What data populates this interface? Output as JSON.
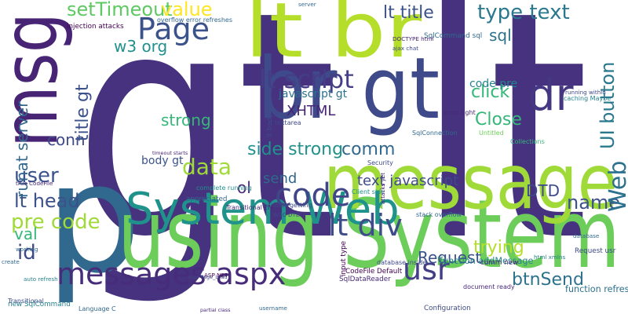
{
  "chart_data": {
    "type": "wordcloud",
    "words": [
      {
        "text": "gt lt",
        "value": 100,
        "color": "#46327e"
      },
      {
        "text": "p",
        "value": 48,
        "color": "#31688e"
      },
      {
        "text": "using System",
        "value": 30,
        "color": "#6ccd5a"
      },
      {
        "text": "message",
        "value": 24,
        "color": "#a0da39"
      },
      {
        "text": "msg",
        "value": 24,
        "color": "#482475"
      },
      {
        "text": "lt br",
        "value": 24,
        "color": "#b5de2b"
      },
      {
        "text": "br gt",
        "value": 27,
        "color": "#3e4a89"
      },
      {
        "text": "dr",
        "value": 14,
        "color": "#453781"
      },
      {
        "text": "System Web",
        "value": 14,
        "color": "#20928c"
      },
      {
        "text": "messages aspx",
        "value": 9.5,
        "color": "#472c7a"
      },
      {
        "text": "code",
        "value": 10,
        "color": "#404688"
      },
      {
        "text": "lt div",
        "value": 9.5,
        "color": "#3e4c8a"
      },
      {
        "text": "usr",
        "value": 9.5,
        "color": "#433e85"
      },
      {
        "text": "Page",
        "value": 9.5,
        "color": "#3b528b"
      },
      {
        "text": "lt script",
        "value": 8,
        "color": "#433e85"
      },
      {
        "text": "setTimeout",
        "value": 6,
        "color": "#5ec962"
      },
      {
        "text": "value",
        "value": 6,
        "color": "#fde725"
      },
      {
        "text": "type text",
        "value": 6.5,
        "color": "#2a788e"
      },
      {
        "text": "lt title",
        "value": 5.5,
        "color": "#3b528b"
      },
      {
        "text": "sql",
        "value": 5,
        "color": "#2c728e"
      },
      {
        "text": "w3 org",
        "value": 5,
        "color": "#21918c"
      },
      {
        "text": "XHTML",
        "value": 4.5,
        "color": "#482677"
      },
      {
        "text": "javascript gt",
        "value": 3.5,
        "color": "#2c728e"
      },
      {
        "text": "click",
        "value": 5.5,
        "color": "#35b779"
      },
      {
        "text": "code pre",
        "value": 3.5,
        "color": "#26828e"
      },
      {
        "text": "strong",
        "value": 5,
        "color": "#35b779"
      },
      {
        "text": "side strong",
        "value": 5.5,
        "color": "#21918c"
      },
      {
        "text": "Close",
        "value": 5.5,
        "color": "#35b779"
      },
      {
        "text": "conn",
        "value": 5,
        "color": "#3e4989"
      },
      {
        "text": "data",
        "value": 7,
        "color": "#a0da39"
      },
      {
        "text": "comm",
        "value": 5.5,
        "color": "#31688e"
      },
      {
        "text": "DTD",
        "value": 5,
        "color": "#3e4a89"
      },
      {
        "text": "user",
        "value": 6.5,
        "color": "#3b528b"
      },
      {
        "text": "lt head",
        "value": 6,
        "color": "#3b528b"
      },
      {
        "text": "pre code",
        "value": 6.5,
        "color": "#a0da39"
      },
      {
        "text": "val",
        "value": 5,
        "color": "#35b779"
      },
      {
        "text": "id",
        "value": 6.5,
        "color": "#3e4a89"
      },
      {
        "text": "name",
        "value": 6,
        "color": "#3b528b"
      },
      {
        "text": "btnSend",
        "value": 5.5,
        "color": "#2c728e"
      },
      {
        "text": "Request",
        "value": 5,
        "color": "#3b528b"
      },
      {
        "text": "trying",
        "value": 5.5,
        "color": "#b5de2b"
      },
      {
        "text": "text javascript",
        "value": 4.5,
        "color": "#3e4a89"
      },
      {
        "text": "send",
        "value": 4.5,
        "color": "#31688e"
      },
      {
        "text": "ol",
        "value": 5,
        "color": "#482677"
      },
      {
        "text": "body gt",
        "value": 3.5,
        "color": "#3b528b"
      },
      {
        "text": "runat server",
        "value": 5,
        "color": "#31688e"
      },
      {
        "text": "title gt",
        "value": 5.5,
        "color": "#3b528b"
      },
      {
        "text": "Web",
        "value": 7.5,
        "color": "#2c728e"
      },
      {
        "text": "UI button",
        "value": 6,
        "color": "#2a788e"
      },
      {
        "text": "injection attacks",
        "value": 2.2,
        "color": "#440154"
      },
      {
        "text": "overflow error refreshes",
        "value": 2,
        "color": "#31688e"
      },
      {
        "text": "SqlCommand sql",
        "value": 2.2,
        "color": "#31688e"
      },
      {
        "text": "DOCTYPE html",
        "value": 1.8,
        "color": "#482878"
      },
      {
        "text": "ajax chat",
        "value": 1.8,
        "color": "#3e4989"
      },
      {
        "text": "function addMessage",
        "value": 2.8,
        "color": "#26828e"
      },
      {
        "text": "document ready",
        "value": 2,
        "color": "#482878"
      },
      {
        "text": "CodeFile Default",
        "value": 2.2,
        "color": "#440154"
      },
      {
        "text": "function refreshChat",
        "value": 2.8,
        "color": "#2c728e"
      },
      {
        "text": "Configuration",
        "value": 2.2,
        "color": "#3e4989"
      },
      {
        "text": "partial class",
        "value": 1.6,
        "color": "#482878"
      },
      {
        "text": "username",
        "value": 1.8,
        "color": "#31688e"
      },
      {
        "text": "database inside",
        "value": 2,
        "color": "#3e4989"
      },
      {
        "text": "SqlDataReader",
        "value": 2.2,
        "color": "#482878"
      },
      {
        "text": "Collections",
        "value": 2,
        "color": "#35b779"
      },
      {
        "text": "handles getting",
        "value": 2,
        "color": "#3e4989"
      },
      {
        "text": "stack overflow",
        "value": 2,
        "color": "#31688e"
      },
      {
        "text": "input type",
        "value": 2.2,
        "color": "#440154"
      },
      {
        "text": "lt textarea",
        "value": 2,
        "color": "#3e4989"
      },
      {
        "text": "Client side",
        "value": 2,
        "color": "#21918c"
      },
      {
        "text": "Security",
        "value": 2,
        "color": "#3e4989"
      },
      {
        "text": "SqlConnection",
        "value": 2,
        "color": "#31688e"
      },
      {
        "text": "Untitled",
        "value": 2,
        "color": "#6ece58"
      },
      {
        "text": "error right",
        "value": 2,
        "color": "#482878"
      },
      {
        "text": "caching Maybe",
        "value": 2,
        "color": "#26828e"
      },
      {
        "text": "complete running",
        "value": 2,
        "color": "#21918c"
      },
      {
        "text": "appreciated",
        "value": 2.2,
        "color": "#31688e"
      },
      {
        "text": "ASP NET",
        "value": 1.8,
        "color": "#440154"
      },
      {
        "text": "Transitional EN",
        "value": 2,
        "color": "#482878"
      },
      {
        "text": "lt body",
        "value": 2.2,
        "color": "#3e4989"
      },
      {
        "text": "comm new",
        "value": 2.2,
        "color": "#482878"
      },
      {
        "text": "W3C DTD",
        "value": 1.8,
        "color": "#3e4989"
      },
      {
        "text": "void Page_Load",
        "value": 1.6,
        "color": "#3e4989"
      },
      {
        "text": "auto refresh",
        "value": 1.8,
        "color": "#26828e"
      },
      {
        "text": "Language C",
        "value": 2,
        "color": "#31688e"
      },
      {
        "text": "working",
        "value": 1.8,
        "color": "#31688e"
      },
      {
        "text": "true CodeFile",
        "value": 1.8,
        "color": "#482878"
      },
      {
        "text": "timeout starts",
        "value": 1.6,
        "color": "#482878"
      },
      {
        "text": "running within",
        "value": 1.8,
        "color": "#3e4989"
      },
      {
        "text": "Request usr",
        "value": 2.2,
        "color": "#3e4989"
      },
      {
        "text": "database",
        "value": 1.8,
        "color": "#31688e"
      },
      {
        "text": "html xmlns",
        "value": 1.8,
        "color": "#26828e"
      },
      {
        "text": "create",
        "value": 1.8,
        "color": "#31688e"
      },
      {
        "text": "server",
        "value": 1.8,
        "color": "#31688e"
      },
      {
        "text": "attacks yet",
        "value": 1.8,
        "color": "#482878"
      },
      {
        "text": "Transitional",
        "value": 2,
        "color": "#3e4989"
      },
      {
        "text": "new SqlCommand",
        "value": 2.2,
        "color": "#26828e"
      }
    ]
  }
}
